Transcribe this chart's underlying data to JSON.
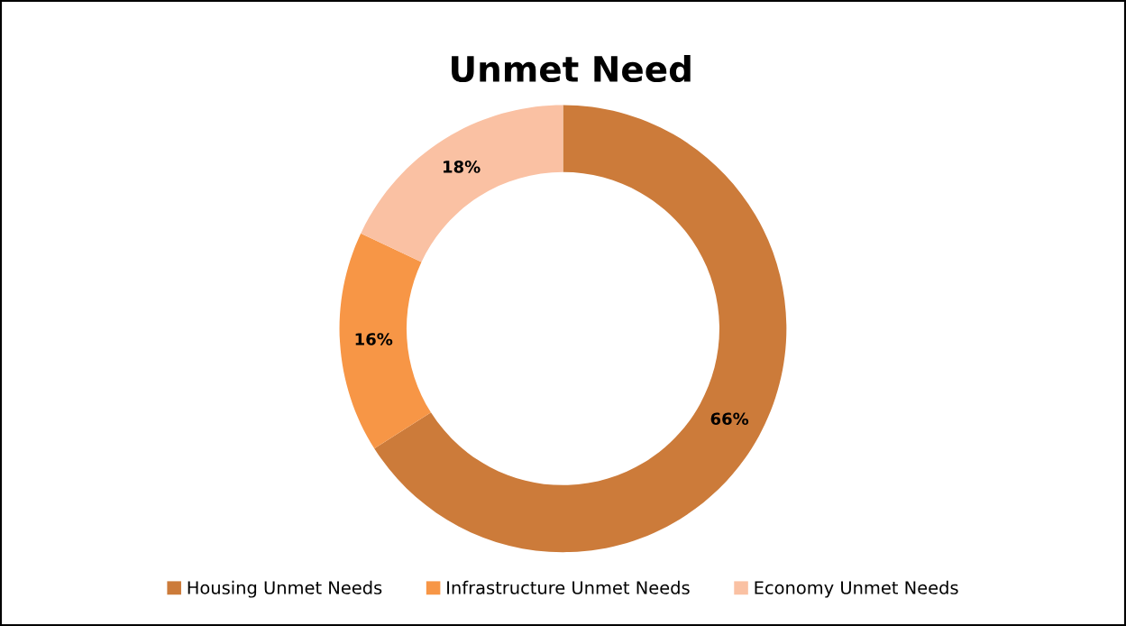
{
  "chart_data": {
    "type": "donut",
    "title": "Unmet Need",
    "categories": [
      "Housing Unmet Needs",
      "Infrastructure Unmet Needs",
      "Economy Unmet Needs"
    ],
    "values": [
      66,
      16,
      18
    ],
    "colors": [
      "#cc7b3a",
      "#f79646",
      "#fac1a3"
    ],
    "value_labels": [
      "66%",
      "16%",
      "18%"
    ],
    "legend": "bottom"
  }
}
